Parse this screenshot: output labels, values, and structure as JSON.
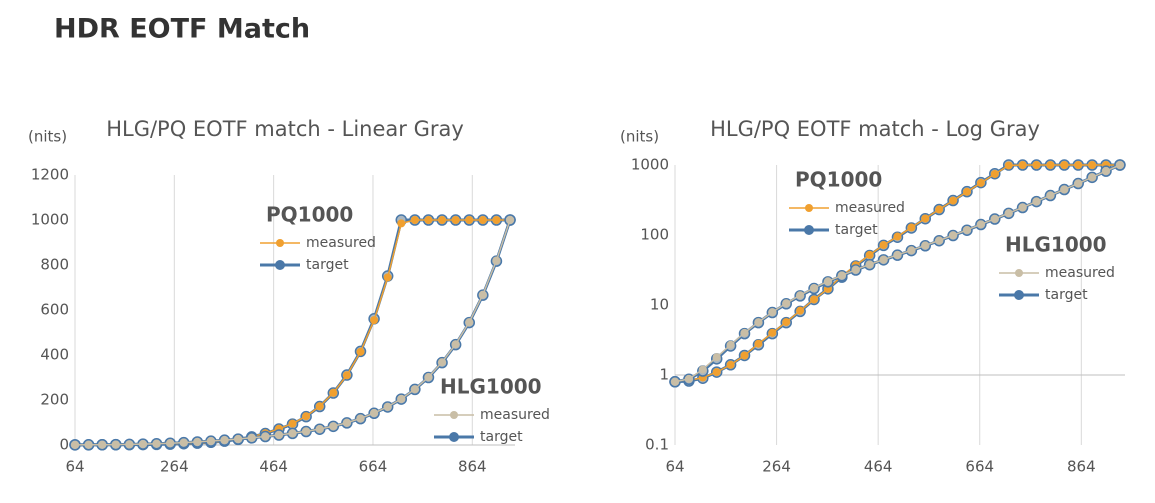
{
  "title": "HDR EOTF Match",
  "chart_data": [
    {
      "type": "line",
      "title": "HLG/PQ EOTF match - Linear Gray",
      "ylabel": "(nits)",
      "x": [
        64,
        91.375,
        118.75,
        146.125,
        173.5,
        200.875,
        228.25,
        255.625,
        283,
        310.375,
        337.75,
        365.125,
        392.5,
        419.875,
        447.25,
        474.625,
        502,
        529.375,
        556.75,
        584.125,
        611.5,
        638.875,
        666.25,
        693.625,
        721,
        748.375,
        775.75,
        803.125,
        830.5,
        857.875,
        885.25,
        912.625,
        940
      ],
      "xlim": [
        64,
        950
      ],
      "xticks": [
        64,
        264,
        464,
        664,
        864
      ],
      "ylim": [
        0,
        1200
      ],
      "yticks": [
        0,
        200,
        400,
        600,
        800,
        1000,
        1200
      ],
      "log": false,
      "grid": "x",
      "xaxis_crosses": 0,
      "series": [
        {
          "name": "target",
          "group": "PQ1000",
          "color": "#4a78a8",
          "values": [
            0.8,
            0.82,
            0.9,
            1.1,
            1.4,
            1.9,
            2.7,
            3.9,
            5.6,
            8.1,
            12,
            17,
            25,
            36,
            51,
            71,
            93,
            126,
            171,
            231,
            311,
            416,
            561,
            751,
            1000,
            1000,
            1000,
            1000,
            1000,
            1000,
            1000,
            1000,
            1000
          ]
        },
        {
          "name": "measured",
          "group": "PQ1000",
          "color": "#f0a030",
          "values": [
            0.8,
            0.83,
            0.92,
            1.1,
            1.4,
            1.9,
            2.8,
            4.0,
            5.7,
            8.3,
            12,
            17,
            26,
            37,
            52,
            72,
            95,
            128,
            172,
            232,
            310,
            414,
            555,
            745,
            985,
            1000,
            1000,
            1000,
            1000,
            1000,
            1000,
            1000,
            1000
          ]
        },
        {
          "name": "target",
          "group": "HLG1000",
          "color": "#4a78a8",
          "values": [
            0.8,
            0.87,
            1.14,
            1.7,
            2.6,
            3.9,
            5.6,
            7.8,
            10.4,
            13.5,
            17.2,
            21.4,
            26.2,
            31.6,
            37.6,
            44.2,
            51.5,
            59.9,
            70.2,
            82.8,
            98.2,
            117,
            141,
            169,
            204,
            247,
            300,
            366,
            446,
            544,
            666,
            817,
            1000
          ]
        },
        {
          "name": "measured",
          "group": "HLG1000",
          "color": "#c9bea6",
          "values": [
            0.8,
            0.88,
            1.2,
            1.8,
            2.7,
            4.0,
            5.7,
            7.9,
            10.6,
            13.8,
            17.5,
            21.8,
            26.5,
            32,
            38,
            44.5,
            52,
            60.5,
            71,
            83.5,
            99,
            118,
            142,
            170,
            205,
            248,
            302,
            368,
            448,
            546,
            668,
            820,
            1000
          ]
        }
      ]
    },
    {
      "type": "line",
      "title": "HLG/PQ EOTF match - Log Gray",
      "ylabel": "(nits)",
      "x": [
        64,
        91.375,
        118.75,
        146.125,
        173.5,
        200.875,
        228.25,
        255.625,
        283,
        310.375,
        337.75,
        365.125,
        392.5,
        419.875,
        447.25,
        474.625,
        502,
        529.375,
        556.75,
        584.125,
        611.5,
        638.875,
        666.25,
        693.625,
        721,
        748.375,
        775.75,
        803.125,
        830.5,
        857.875,
        885.25,
        912.625,
        940
      ],
      "xlim": [
        64,
        950
      ],
      "xticks": [
        64,
        264,
        464,
        664,
        864
      ],
      "ylim": [
        0.1,
        1000
      ],
      "yticks": [
        0.1,
        1,
        10,
        100,
        1000
      ],
      "log": true,
      "grid": "x",
      "xaxis_crosses": 1,
      "series": [
        {
          "name": "target",
          "group": "PQ1000",
          "color": "#4a78a8",
          "values": [
            0.8,
            0.82,
            0.9,
            1.1,
            1.4,
            1.9,
            2.7,
            3.9,
            5.6,
            8.1,
            12,
            17,
            25,
            36,
            51,
            71,
            93,
            126,
            171,
            231,
            311,
            416,
            561,
            751,
            1000,
            1000,
            1000,
            1000,
            1000,
            1000,
            1000,
            1000,
            1000
          ]
        },
        {
          "name": "measured",
          "group": "PQ1000",
          "color": "#f0a030",
          "values": [
            0.8,
            0.83,
            0.92,
            1.1,
            1.4,
            1.9,
            2.8,
            4.0,
            5.7,
            8.3,
            12,
            17,
            26,
            37,
            52,
            72,
            95,
            128,
            172,
            232,
            310,
            414,
            555,
            745,
            985,
            1000,
            1000,
            1000,
            1000,
            1000,
            1000,
            1000,
            1000
          ]
        },
        {
          "name": "target",
          "group": "HLG1000",
          "color": "#4a78a8",
          "values": [
            0.8,
            0.87,
            1.14,
            1.7,
            2.6,
            3.9,
            5.6,
            7.8,
            10.4,
            13.5,
            17.2,
            21.4,
            26.2,
            31.6,
            37.6,
            44.2,
            51.5,
            59.9,
            70.2,
            82.8,
            98.2,
            117,
            141,
            169,
            204,
            247,
            300,
            366,
            446,
            544,
            666,
            817,
            1000
          ]
        },
        {
          "name": "measured",
          "group": "HLG1000",
          "color": "#c9bea6",
          "values": [
            0.8,
            0.88,
            1.2,
            1.8,
            2.7,
            4.0,
            5.7,
            7.9,
            10.6,
            13.8,
            17.5,
            21.8,
            26.5,
            32,
            38,
            44.5,
            52,
            60.5,
            71,
            83.5,
            99,
            118,
            142,
            170,
            205,
            248,
            302,
            368,
            448,
            546,
            668,
            820,
            1000
          ]
        }
      ]
    }
  ]
}
